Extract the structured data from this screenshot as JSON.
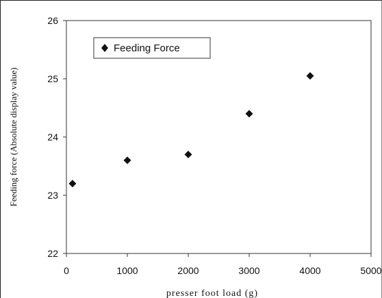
{
  "chart_data": {
    "type": "scatter",
    "title": "",
    "xlabel": "presser foot load (g)",
    "ylabel": "Feeding force (Absolute display value)",
    "xlim": [
      0,
      5000
    ],
    "ylim": [
      22,
      26
    ],
    "xticks": [
      0,
      1000,
      2000,
      3000,
      4000,
      5000
    ],
    "yticks": [
      22,
      23,
      24,
      25,
      26
    ],
    "grid": false,
    "legend": {
      "position": "top-left",
      "entries": [
        "Feeding Force"
      ]
    },
    "series": [
      {
        "name": "Feeding Force",
        "marker": "diamond",
        "color": "#111111",
        "points": [
          {
            "x": 100,
            "y": 23.2
          },
          {
            "x": 1000,
            "y": 23.6
          },
          {
            "x": 2000,
            "y": 23.7
          },
          {
            "x": 3000,
            "y": 24.4
          },
          {
            "x": 4000,
            "y": 25.05
          }
        ]
      }
    ]
  }
}
